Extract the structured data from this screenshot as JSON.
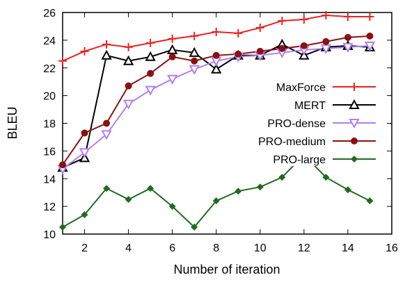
{
  "chart_data": {
    "type": "line",
    "xlabel": "Number of iteration",
    "ylabel": "BLEU",
    "xlim": [
      1,
      16
    ],
    "ylim": [
      10,
      26
    ],
    "xticks": [
      2,
      4,
      6,
      8,
      10,
      12,
      14,
      16
    ],
    "yticks": [
      10,
      12,
      14,
      16,
      18,
      20,
      22,
      24,
      26
    ],
    "grid": false,
    "legend_position": "right",
    "series": [
      {
        "name": "MaxForce",
        "color": "#ee2020",
        "marker": "plus",
        "x": [
          1,
          2,
          3,
          4,
          5,
          6,
          7,
          8,
          9,
          10,
          11,
          12,
          13,
          14,
          15
        ],
        "values": [
          22.5,
          23.2,
          23.7,
          23.5,
          23.8,
          24.1,
          24.3,
          24.6,
          24.5,
          24.9,
          25.4,
          25.5,
          25.8,
          25.7,
          25.7
        ]
      },
      {
        "name": "MERT",
        "color": "#000000",
        "marker": "triangle-open",
        "x": [
          1,
          2,
          3,
          4,
          5,
          6,
          7,
          8,
          9,
          10,
          11,
          12,
          13,
          14,
          15
        ],
        "values": [
          14.8,
          15.5,
          22.9,
          22.5,
          22.8,
          23.3,
          23.1,
          21.9,
          22.9,
          22.9,
          23.7,
          22.9,
          23.5,
          23.6,
          23.5
        ]
      },
      {
        "name": "PRO-dense",
        "color": "#b07ff0",
        "marker": "triangle-down",
        "x": [
          1,
          2,
          3,
          4,
          5,
          6,
          7,
          8,
          9,
          10,
          11,
          12,
          13,
          14,
          15
        ],
        "values": [
          14.7,
          15.9,
          17.2,
          19.4,
          20.4,
          21.2,
          21.9,
          22.5,
          22.8,
          22.9,
          23.1,
          23.3,
          23.4,
          23.5,
          23.6
        ]
      },
      {
        "name": "PRO-medium",
        "color": "#8b1010",
        "marker": "circle",
        "x": [
          1,
          2,
          3,
          4,
          5,
          6,
          7,
          8,
          9,
          10,
          11,
          12,
          13,
          14,
          15
        ],
        "values": [
          15.0,
          17.3,
          18.0,
          20.7,
          21.6,
          22.8,
          22.5,
          22.9,
          23.0,
          23.2,
          23.4,
          23.6,
          23.9,
          24.2,
          24.3
        ]
      },
      {
        "name": "PRO-large",
        "color": "#1f6b1f",
        "marker": "diamond",
        "x": [
          1,
          2,
          3,
          4,
          5,
          6,
          7,
          8,
          9,
          10,
          11,
          12,
          13,
          14,
          15
        ],
        "values": [
          10.5,
          11.4,
          13.3,
          12.5,
          13.3,
          12.0,
          10.5,
          12.4,
          13.1,
          13.4,
          14.1,
          15.7,
          14.1,
          13.2,
          12.4
        ]
      }
    ]
  }
}
